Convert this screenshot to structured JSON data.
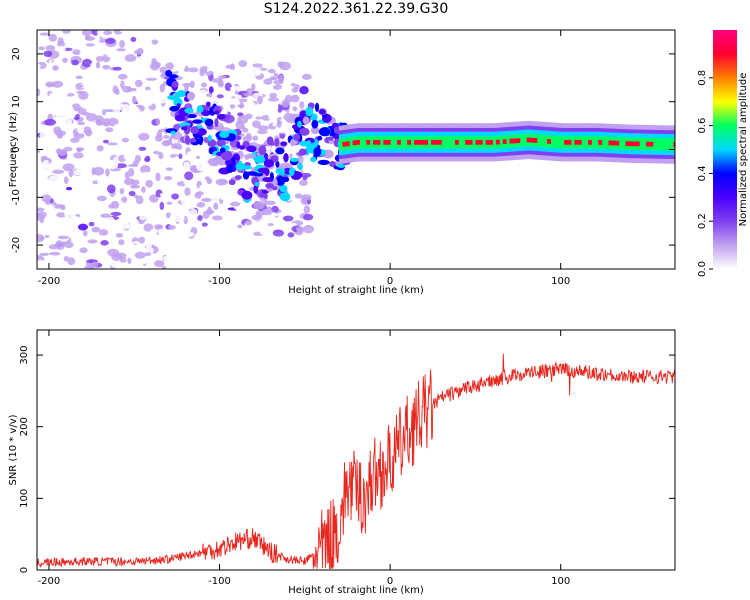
{
  "title": "S124.2022.361.22.39.G30",
  "colors": {
    "snr_line": "#e8261e",
    "colormap": [
      "#ffffff",
      "#c0a0f0",
      "#8040f0",
      "#4a00ff",
      "#0000ff",
      "#00d8ff",
      "#00ff60",
      "#ffff00",
      "#ff8000",
      "#ff0030",
      "#ff0080"
    ]
  },
  "chart_data": [
    {
      "type": "heatmap",
      "xlabel": "Height of straight line (km)",
      "ylabel": "Frequency (Hz)",
      "xlim": [
        -207,
        167
      ],
      "ylim": [
        -25,
        25
      ],
      "xticks": [
        -200,
        -100,
        0,
        100
      ],
      "yticks": [
        -20,
        -10,
        0,
        10,
        20
      ],
      "colorbar": {
        "label": "Normalized spectral amplitude",
        "range": [
          0,
          1
        ],
        "ticks": [
          "0.0",
          "0.2",
          "0.4",
          "0.6",
          "0.8"
        ]
      },
      "ridge": {
        "x": [
          -130,
          -110,
          -100,
          -90,
          -80,
          -70,
          -60,
          -50,
          -40,
          -30,
          -20,
          0,
          20,
          40,
          60,
          80,
          100,
          120,
          140,
          167
        ],
        "frequency": [
          10,
          6,
          2,
          -2,
          -6,
          -3,
          -5,
          4,
          3,
          1,
          1.5,
          1.5,
          1.5,
          1.5,
          1.5,
          2,
          1.5,
          1.5,
          1.2,
          1
        ]
      }
    },
    {
      "type": "line",
      "xlabel": "Height of straight line (km)",
      "ylabel": "SNR (10 * v/v)",
      "xlim": [
        -207,
        167
      ],
      "ylim": [
        0,
        335
      ],
      "xticks": [
        -200,
        -100,
        0,
        100
      ],
      "yticks": [
        0,
        100,
        200,
        300
      ],
      "series": [
        {
          "x": [
            -207,
            -180,
            -150,
            -130,
            -110,
            -100,
            -90,
            -80,
            -70,
            -60,
            -50,
            -40,
            -30,
            -25,
            -20,
            -15,
            -10,
            -5,
            0,
            10,
            20,
            30,
            40,
            60,
            80,
            100,
            120,
            140,
            167
          ],
          "values": [
            10,
            12,
            12,
            15,
            25,
            30,
            40,
            45,
            25,
            15,
            12,
            30,
            60,
            120,
            110,
            100,
            130,
            140,
            150,
            190,
            220,
            240,
            250,
            265,
            275,
            280,
            275,
            270,
            270
          ]
        }
      ]
    }
  ]
}
